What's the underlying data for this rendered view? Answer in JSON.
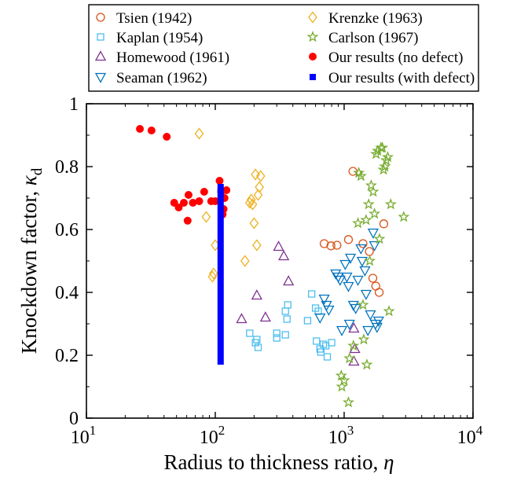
{
  "chart_data": {
    "type": "scatter",
    "title": "",
    "xlabel": "Radius to thickness ratio,",
    "xlabel_symbol": "η",
    "ylabel": "Knockdown factor,",
    "ylabel_symbol": "κ",
    "ylabel_subscript": "d",
    "x_scale": "log",
    "xlim": [
      10,
      10000
    ],
    "ylim": [
      0,
      1
    ],
    "x_ticks": [
      10,
      100,
      1000,
      10000
    ],
    "x_tick_labels": [
      {
        "base": "10",
        "exp": "1"
      },
      {
        "base": "10",
        "exp": "2"
      },
      {
        "base": "10",
        "exp": "3"
      },
      {
        "base": "10",
        "exp": "4"
      }
    ],
    "y_ticks": [
      0,
      0.2,
      0.4,
      0.6,
      0.8,
      1
    ],
    "y_tick_labels": [
      "0",
      "0.2",
      "0.4",
      "0.6",
      "0.8",
      "1"
    ],
    "grid": false,
    "legend_placement": "top",
    "series": [
      {
        "name": "Tsien (1942)",
        "marker": "circle-open",
        "color": "#d95319",
        "points": [
          [
            1170,
            0.785
          ],
          [
            700,
            0.555
          ],
          [
            790,
            0.548
          ],
          [
            880,
            0.55
          ],
          [
            1080,
            0.568
          ],
          [
            1400,
            0.555
          ],
          [
            1570,
            0.53
          ],
          [
            1670,
            0.445
          ],
          [
            1760,
            0.42
          ],
          [
            1870,
            0.4
          ],
          [
            2030,
            0.618
          ]
        ]
      },
      {
        "name": "Kaplan (1954)",
        "marker": "square-open",
        "color": "#4dbeee",
        "points": [
          [
            185,
            0.27
          ],
          [
            205,
            0.24
          ],
          [
            215,
            0.225
          ],
          [
            210,
            0.25
          ],
          [
            300,
            0.27
          ],
          [
            300,
            0.255
          ],
          [
            350,
            0.34
          ],
          [
            365,
            0.36
          ],
          [
            360,
            0.315
          ],
          [
            350,
            0.265
          ],
          [
            520,
            0.31
          ],
          [
            560,
            0.395
          ],
          [
            600,
            0.35
          ],
          [
            630,
            0.34
          ],
          [
            650,
            0.22
          ],
          [
            610,
            0.245
          ],
          [
            660,
            0.21
          ],
          [
            690,
            0.235
          ],
          [
            720,
            0.23
          ],
          [
            740,
            0.195
          ],
          [
            800,
            0.24
          ]
        ]
      },
      {
        "name": "Homewood (1961)",
        "marker": "triangle-up-open",
        "color": "#7e2f8e",
        "points": [
          [
            160,
            0.315
          ],
          [
            210,
            0.39
          ],
          [
            245,
            0.32
          ],
          [
            310,
            0.545
          ],
          [
            340,
            0.515
          ],
          [
            370,
            0.435
          ],
          [
            1190,
            0.285
          ],
          [
            1190,
            0.18
          ],
          [
            1210,
            0.22
          ]
        ]
      },
      {
        "name": "Seaman (1962)",
        "marker": "triangle-down-open",
        "color": "#0072bd",
        "points": [
          [
            650,
            0.32
          ],
          [
            700,
            0.38
          ],
          [
            730,
            0.36
          ],
          [
            760,
            0.345
          ],
          [
            860,
            0.46
          ],
          [
            900,
            0.45
          ],
          [
            930,
            0.44
          ],
          [
            960,
            0.28
          ],
          [
            1020,
            0.49
          ],
          [
            1050,
            0.45
          ],
          [
            1080,
            0.42
          ],
          [
            1100,
            0.3
          ],
          [
            1120,
            0.51
          ],
          [
            1180,
            0.36
          ],
          [
            1230,
            0.35
          ],
          [
            1280,
            0.44
          ],
          [
            1350,
            0.54
          ],
          [
            1380,
            0.5
          ],
          [
            1450,
            0.47
          ],
          [
            1480,
            0.395
          ],
          [
            1530,
            0.28
          ],
          [
            1600,
            0.33
          ],
          [
            1680,
            0.59
          ],
          [
            1720,
            0.55
          ],
          [
            1750,
            0.3
          ],
          [
            1800,
            0.29
          ],
          [
            1850,
            0.31
          ]
        ]
      },
      {
        "name": "Krenzke (1963)",
        "marker": "diamond-open",
        "color": "#edb120",
        "points": [
          [
            75,
            0.905
          ],
          [
            85,
            0.64
          ],
          [
            95,
            0.45
          ],
          [
            97,
            0.46
          ],
          [
            100,
            0.55
          ],
          [
            170,
            0.5
          ],
          [
            185,
            0.685
          ],
          [
            190,
            0.695
          ],
          [
            195,
            0.68
          ],
          [
            200,
            0.62
          ],
          [
            205,
            0.775
          ],
          [
            210,
            0.55
          ],
          [
            215,
            0.71
          ],
          [
            220,
            0.735
          ],
          [
            225,
            0.77
          ]
        ]
      },
      {
        "name": "Carlson (1967)",
        "marker": "star-open",
        "color": "#77ac30",
        "points": [
          [
            950,
            0.135
          ],
          [
            960,
            0.1
          ],
          [
            1000,
            0.12
          ],
          [
            1080,
            0.05
          ],
          [
            1100,
            0.19
          ],
          [
            1180,
            0.23
          ],
          [
            1280,
            0.62
          ],
          [
            1300,
            0.78
          ],
          [
            1350,
            0.77
          ],
          [
            1400,
            0.36
          ],
          [
            1420,
            0.25
          ],
          [
            1480,
            0.63
          ],
          [
            1500,
            0.17
          ],
          [
            1550,
            0.68
          ],
          [
            1580,
            0.5
          ],
          [
            1620,
            0.74
          ],
          [
            1680,
            0.72
          ],
          [
            1720,
            0.65
          ],
          [
            1770,
            0.84
          ],
          [
            1820,
            0.85
          ],
          [
            1880,
            0.57
          ],
          [
            1930,
            0.86
          ],
          [
            1980,
            0.86
          ],
          [
            2020,
            0.79
          ],
          [
            2070,
            0.8
          ],
          [
            2120,
            0.82
          ],
          [
            2180,
            0.83
          ],
          [
            2230,
            0.34
          ],
          [
            2300,
            0.68
          ],
          [
            2900,
            0.64
          ]
        ]
      },
      {
        "name": "Our results (no defect)",
        "marker": "circle-filled",
        "color": "#ff0000",
        "points": [
          [
            26,
            0.92
          ],
          [
            32,
            0.915
          ],
          [
            42,
            0.895
          ],
          [
            48,
            0.685
          ],
          [
            52,
            0.67
          ],
          [
            57,
            0.685
          ],
          [
            62,
            0.71
          ],
          [
            61,
            0.628
          ],
          [
            67,
            0.685
          ],
          [
            75,
            0.69
          ],
          [
            82,
            0.72
          ],
          [
            93,
            0.69
          ],
          [
            100,
            0.69
          ],
          [
            108,
            0.755
          ],
          [
            111,
            0.72
          ],
          [
            114,
            0.648
          ],
          [
            116,
            0.665
          ],
          [
            118,
            0.7
          ],
          [
            122,
            0.725
          ]
        ]
      },
      {
        "name": "Our results (with defect)",
        "marker": "square-filled",
        "color": "#0000ff",
        "points": [
          [
            110,
            0.18
          ],
          [
            110,
            0.2
          ],
          [
            110,
            0.22
          ],
          [
            110,
            0.24
          ],
          [
            110,
            0.26
          ],
          [
            110,
            0.28
          ],
          [
            110,
            0.3
          ],
          [
            110,
            0.32
          ],
          [
            110,
            0.34
          ],
          [
            110,
            0.36
          ],
          [
            110,
            0.38
          ],
          [
            110,
            0.4
          ],
          [
            110,
            0.42
          ],
          [
            110,
            0.44
          ],
          [
            110,
            0.46
          ],
          [
            110,
            0.48
          ],
          [
            110,
            0.5
          ],
          [
            110,
            0.52
          ],
          [
            110,
            0.54
          ],
          [
            110,
            0.56
          ],
          [
            110,
            0.58
          ],
          [
            110,
            0.6
          ],
          [
            110,
            0.62
          ],
          [
            110,
            0.64
          ],
          [
            110,
            0.66
          ],
          [
            110,
            0.68
          ],
          [
            110,
            0.7
          ],
          [
            110,
            0.72
          ],
          [
            110,
            0.735
          ]
        ]
      }
    ]
  }
}
